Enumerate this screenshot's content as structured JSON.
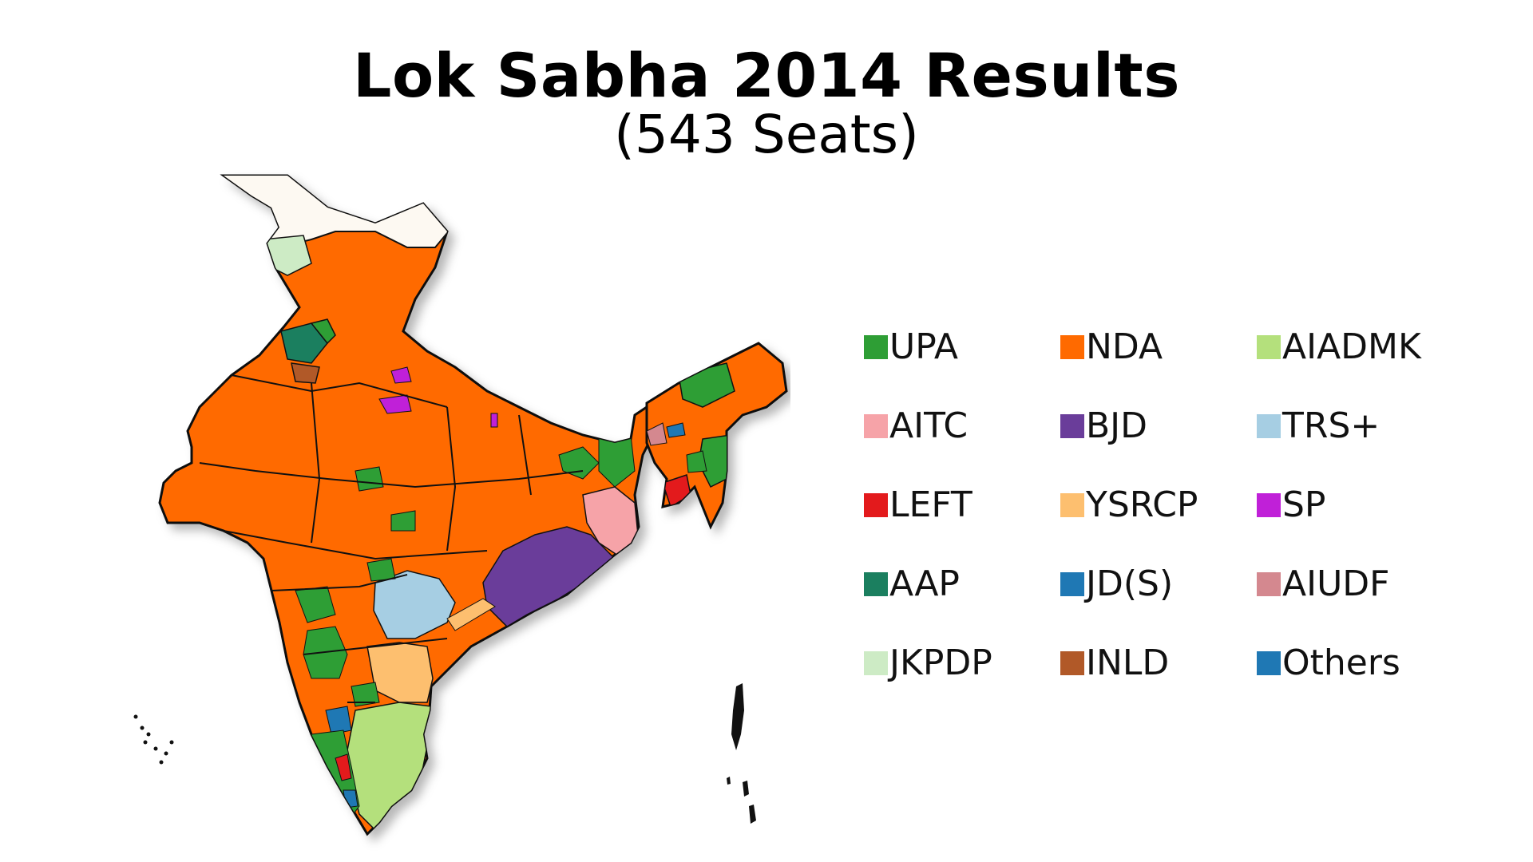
{
  "title": "Lok Sabha 2014 Results",
  "subtitle": "(543 Seats)",
  "legend": [
    {
      "label": "UPA",
      "color": "#2e9e35"
    },
    {
      "label": "NDA",
      "color": "#ff6a00"
    },
    {
      "label": "AIADMK",
      "color": "#b4e07c"
    },
    {
      "label": "AITC",
      "color": "#f6a3a8"
    },
    {
      "label": "BJD",
      "color": "#6a3d9a"
    },
    {
      "label": "TRS+",
      "color": "#a6cee3"
    },
    {
      "label": "LEFT",
      "color": "#e31a1c"
    },
    {
      "label": "YSRCP",
      "color": "#fdbf6f"
    },
    {
      "label": "SP",
      "color": "#c020d8"
    },
    {
      "label": "AAP",
      "color": "#1b7f5f"
    },
    {
      "label": "JD(S)",
      "color": "#1f78b4"
    },
    {
      "label": "AIUDF",
      "color": "#d4888f"
    },
    {
      "label": "JKPDP",
      "color": "#cdebc5"
    },
    {
      "label": "INLD",
      "color": "#b15928"
    },
    {
      "label": "Others",
      "color": "#1f78b4"
    }
  ],
  "map_colors": {
    "unclaimed_region": "#fdf9f2",
    "border": "#111111",
    "shadow": "#cccccc"
  }
}
